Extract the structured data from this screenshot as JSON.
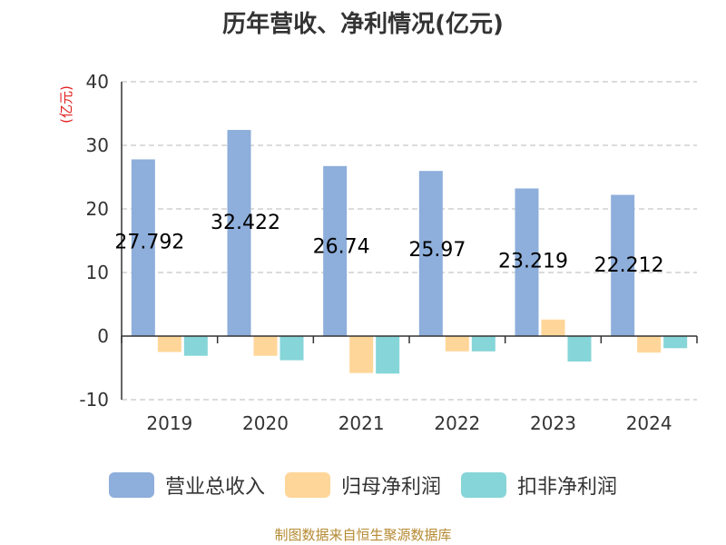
{
  "chart_data": {
    "type": "bar",
    "title": "历年营收、净利情况(亿元)",
    "ylabel": "(亿元)",
    "categories": [
      "2019",
      "2020",
      "2021",
      "2022",
      "2023",
      "2024"
    ],
    "ylim": [
      -10,
      40
    ],
    "yticks": [
      40,
      30,
      20,
      10,
      0,
      -10
    ],
    "grid": true,
    "legend_position": "bottom",
    "series": [
      {
        "name": "营业总收入",
        "color": "#8eaedb",
        "values": [
          27.792,
          32.422,
          26.74,
          25.97,
          23.219,
          22.212
        ],
        "labels": [
          "27.792",
          "32.422",
          "26.74",
          "25.97",
          "23.219",
          "22.212"
        ]
      },
      {
        "name": "归母净利润",
        "color": "#ffd699",
        "values": [
          -2.5,
          -3.1,
          -5.8,
          -2.4,
          2.6,
          -2.6
        ]
      },
      {
        "name": "扣非净利润",
        "color": "#86d5d8",
        "values": [
          -3.1,
          -3.8,
          -5.9,
          -2.4,
          -4.0,
          -1.9
        ]
      }
    ]
  },
  "footer": {
    "source": "制图数据来自恒生聚源数据库"
  }
}
